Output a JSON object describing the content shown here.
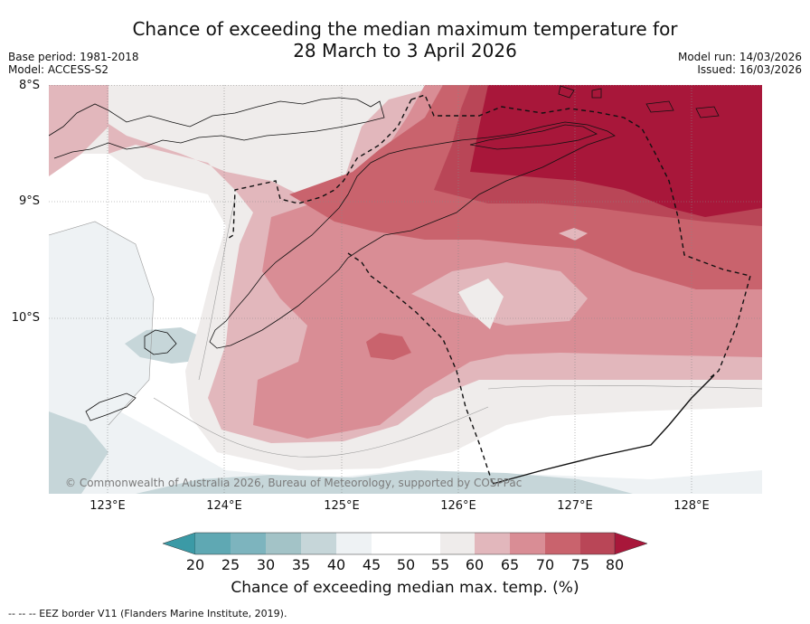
{
  "title_line1": "Chance of exceeding the median maximum temperature for",
  "title_line2": "28 March to 3 April 2026",
  "base_period": "Base period: 1981-2018",
  "model": "Model: ACCESS-S2",
  "model_run": "Model run: 14/03/2026",
  "issued": "Issued: 16/03/2026",
  "lat_labels": [
    "8°S",
    "9°S",
    "10°S"
  ],
  "lon_labels": [
    "123°E",
    "124°E",
    "125°E",
    "126°E",
    "127°E",
    "128°E"
  ],
  "copyright": "© Commonwealth of Australia 2026, Bureau of Meteorology, supported by COSPPac",
  "colorbar": {
    "ticks": [
      "20",
      "25",
      "30",
      "35",
      "40",
      "45",
      "50",
      "55",
      "60",
      "65",
      "70",
      "75",
      "80"
    ],
    "colors": [
      "#5fa8b3",
      "#7db4be",
      "#a3c3c7",
      "#c6d6d9",
      "#eef2f4",
      "#ffffff",
      "#ffffff",
      "#efeceb",
      "#e2b7bc",
      "#d98d95",
      "#c9636d",
      "#b94657",
      "#a8173a"
    ],
    "title": "Chance of exceeding median max. temp. (%)"
  },
  "footer": "--  --  -- EEZ border V11 (Flanders Marine Institute, 2019).",
  "legend_colors": {
    "p35": "#c6d6d9",
    "p40": "#eef2f4",
    "p55": "#efeceb",
    "p60": "#e2b7bc",
    "p65": "#d98d95",
    "p70": "#c9636d",
    "p75": "#b94657",
    "p80": "#a8173a"
  }
}
